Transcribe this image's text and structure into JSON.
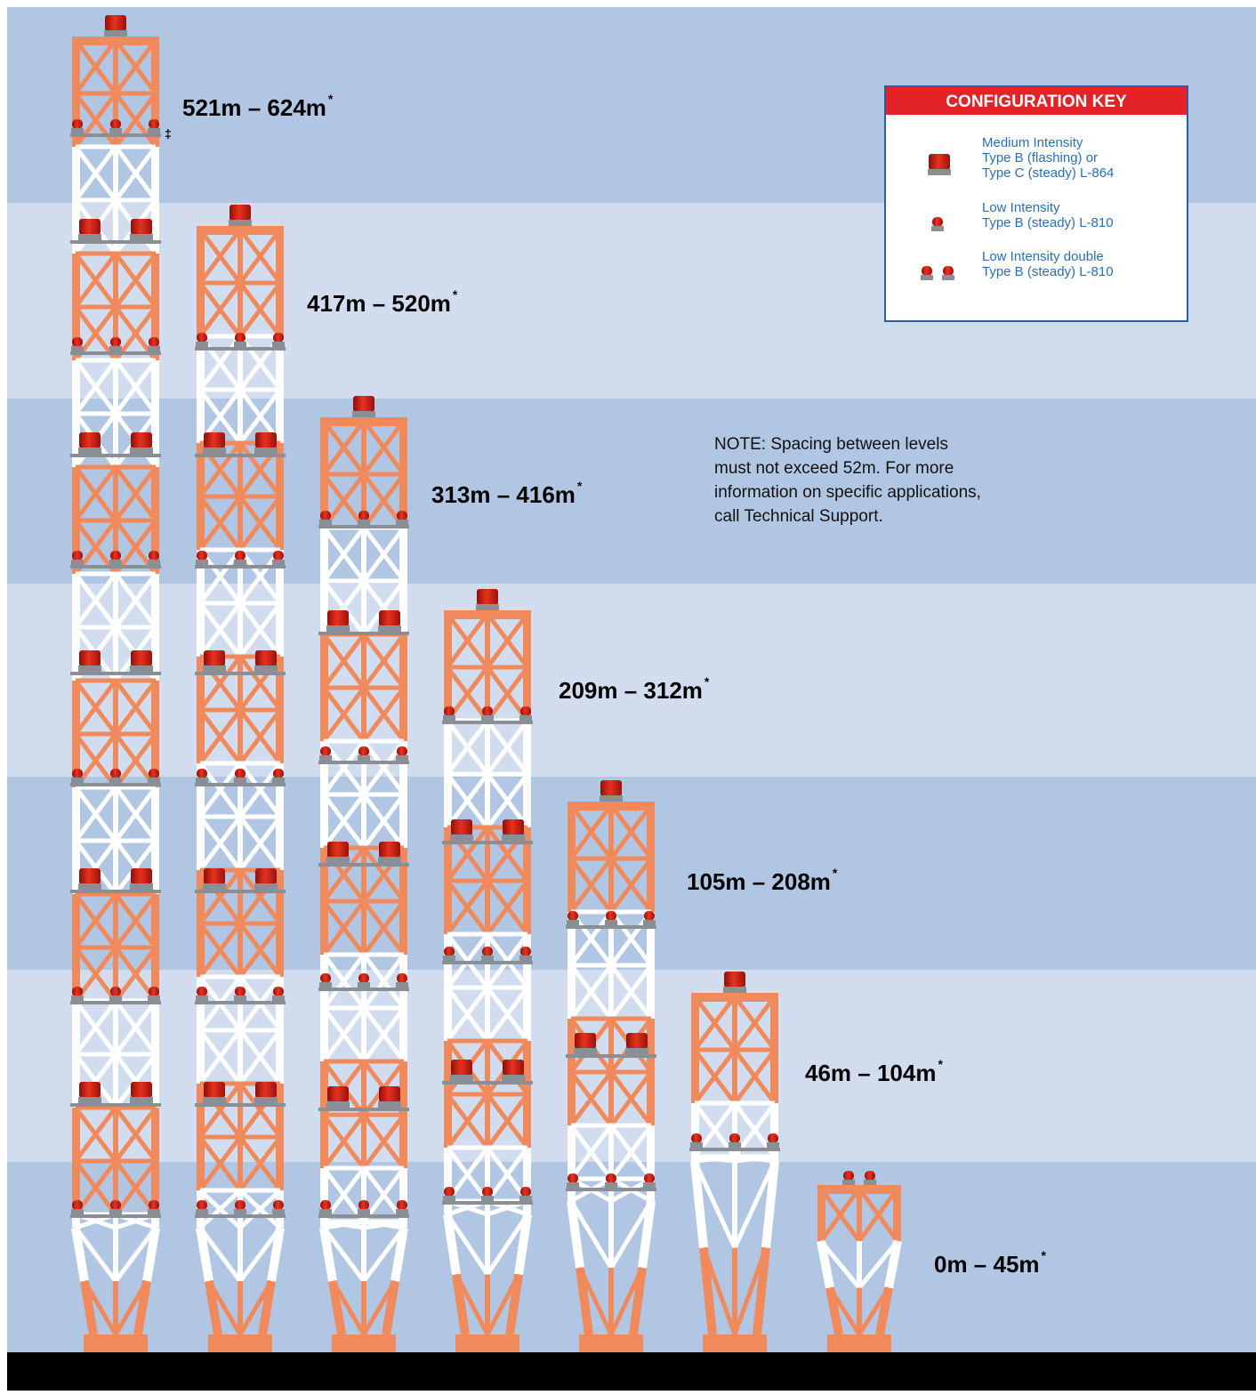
{
  "towers": [
    {
      "label": "521m – 624m",
      "footnote": "*",
      "mark": "‡"
    },
    {
      "label": "417m – 520m",
      "footnote": "*"
    },
    {
      "label": "313m – 416m",
      "footnote": "*"
    },
    {
      "label": "209m – 312m",
      "footnote": "*"
    },
    {
      "label": "105m – 208m",
      "footnote": "*"
    },
    {
      "label": "46m – 104m",
      "footnote": "*"
    },
    {
      "label": "0m – 45m",
      "footnote": "*"
    }
  ],
  "key": {
    "title": "CONFIGURATION KEY",
    "items": [
      {
        "lines": [
          "Medium Intensity",
          "Type B (flashing) or",
          "Type C (steady) L-864"
        ]
      },
      {
        "lines": [
          "Low Intensity",
          "Type B (steady) L-810"
        ]
      },
      {
        "lines": [
          "Low Intensity double",
          "Type B (steady) L-810"
        ]
      }
    ]
  },
  "note": {
    "lines": [
      "NOTE: Spacing between levels",
      "must not exceed 52m. For more",
      "information on specific applications,",
      "call Technical Support."
    ]
  }
}
